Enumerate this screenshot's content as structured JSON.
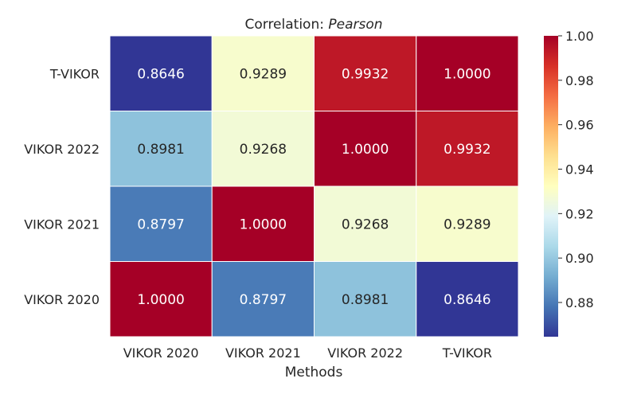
{
  "chart_data": {
    "type": "heatmap",
    "title_prefix": "Correlation: ",
    "title_method": "Pearson",
    "xlabel": "Methods",
    "ylabel": "",
    "x_categories": [
      "VIKOR 2020",
      "VIKOR 2021",
      "VIKOR 2022",
      "T-VIKOR"
    ],
    "y_categories": [
      "T-VIKOR",
      "VIKOR 2022",
      "VIKOR 2021",
      "VIKOR 2020"
    ],
    "values": [
      [
        0.8646,
        0.9289,
        0.9932,
        1.0
      ],
      [
        0.8981,
        0.9268,
        1.0,
        0.9932
      ],
      [
        0.8797,
        1.0,
        0.9268,
        0.9289
      ],
      [
        1.0,
        0.8797,
        0.8981,
        0.8646
      ]
    ],
    "value_labels": [
      [
        "0.8646",
        "0.9289",
        "0.9932",
        "1.0000"
      ],
      [
        "0.8981",
        "0.9268",
        "1.0000",
        "0.9932"
      ],
      [
        "0.8797",
        "1.0000",
        "0.9268",
        "0.9289"
      ],
      [
        "1.0000",
        "0.8797",
        "0.8981",
        "0.8646"
      ]
    ],
    "colorbar": {
      "range": [
        0.8646,
        1.0
      ],
      "ticks": [
        0.88,
        0.9,
        0.92,
        0.94,
        0.96,
        0.98,
        1.0
      ],
      "tick_labels": [
        "0.88",
        "0.90",
        "0.92",
        "0.94",
        "0.96",
        "0.98",
        "1.00"
      ],
      "colormap": "RdYlBu_r"
    }
  }
}
